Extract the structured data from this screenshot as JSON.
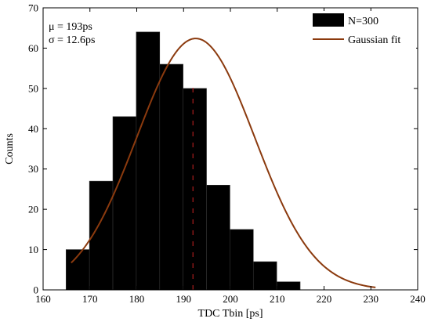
{
  "chart_data": {
    "type": "bar",
    "xlabel": "TDC Tbin [ps]",
    "ylabel": "Counts",
    "xlim": [
      160,
      240
    ],
    "ylim": [
      0,
      70
    ],
    "xticks": [
      160,
      170,
      180,
      190,
      200,
      210,
      220,
      230,
      240
    ],
    "yticks": [
      0,
      10,
      20,
      30,
      40,
      50,
      60,
      70
    ],
    "grid": false,
    "legend_position": "top-right",
    "bins": [
      {
        "x0": 164.9,
        "x1": 169.9,
        "value": 10
      },
      {
        "x0": 169.9,
        "x1": 174.9,
        "value": 27
      },
      {
        "x0": 174.9,
        "x1": 179.9,
        "value": 43
      },
      {
        "x0": 179.9,
        "x1": 184.9,
        "value": 64
      },
      {
        "x0": 184.9,
        "x1": 189.9,
        "value": 56
      },
      {
        "x0": 189.9,
        "x1": 194.9,
        "value": 50
      },
      {
        "x0": 194.9,
        "x1": 199.9,
        "value": 26
      },
      {
        "x0": 199.9,
        "x1": 204.9,
        "value": 15
      },
      {
        "x0": 204.9,
        "x1": 209.9,
        "value": 7
      },
      {
        "x0": 209.9,
        "x1": 214.9,
        "value": 2
      }
    ],
    "fit": {
      "name": "Gaussian fit",
      "color": "#8B3A0E",
      "mean": 192.6,
      "sigma": 12.6,
      "peak": 62.4,
      "x_range": [
        166,
        231
      ]
    },
    "mean_line_x": 192,
    "bar_color": "#000000",
    "bar_edge_color": "#333333",
    "legend": [
      {
        "label": "N=300",
        "swatch": "bar"
      },
      {
        "label": "Gaussian fit",
        "swatch": "line"
      }
    ],
    "stats": {
      "mu": "μ = 193ps",
      "sigma": "σ = 12.6ps"
    }
  }
}
